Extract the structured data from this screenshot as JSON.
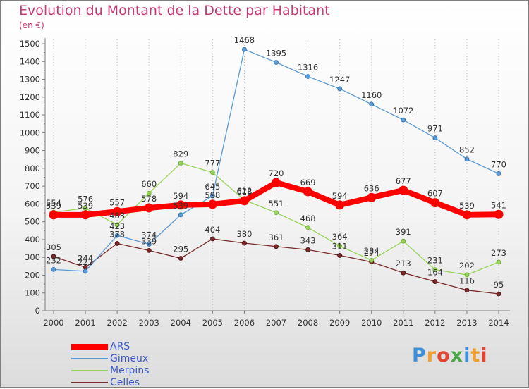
{
  "chart_data": {
    "type": "line",
    "title": "Evolution du Montant de la Dette par Habitant",
    "unit": "(en €)",
    "categories": [
      "2000",
      "2001",
      "2002",
      "2003",
      "2004",
      "2005",
      "2006",
      "2007",
      "2008",
      "2009",
      "2010",
      "2011",
      "2012",
      "2013",
      "2014"
    ],
    "ylim": [
      0,
      1500
    ],
    "yticks": [
      0,
      100,
      200,
      300,
      400,
      500,
      600,
      700,
      800,
      900,
      1000,
      1100,
      1200,
      1300,
      1400,
      1500
    ],
    "grid": "vertical dotted",
    "legend_position": "bottom-left",
    "series": [
      {
        "name": "ARS",
        "color": "#ff0000",
        "values": [
          539,
          539,
          557,
          578,
          594,
          598,
          618,
          720,
          669,
          594,
          636,
          677,
          607,
          539,
          541
        ]
      },
      {
        "name": "Gimeux",
        "color": "#5b9bd5",
        "values": [
          232,
          222,
          423,
          374,
          539,
          645,
          1468,
          1395,
          1316,
          1247,
          1160,
          1072,
          971,
          852,
          770
        ]
      },
      {
        "name": "Merpins",
        "color": "#99d45a",
        "values": [
          554,
          576,
          483,
          660,
          829,
          777,
          622,
          551,
          468,
          364,
          284,
          391,
          231,
          202,
          273
        ]
      },
      {
        "name": "Celles",
        "color": "#7a2a2a",
        "values": [
          305,
          244,
          378,
          339,
          295,
          404,
          380,
          361,
          343,
          311,
          274,
          213,
          164,
          116,
          95
        ]
      }
    ]
  },
  "brand": {
    "letters": [
      "P",
      "r",
      "o",
      "x",
      "i",
      "t",
      "i"
    ],
    "colors": [
      "#3f8fd8",
      "#f0a030",
      "#e0452f",
      "#4aa84a",
      "#3f8fd8",
      "#f0a030",
      "#e0452f"
    ]
  }
}
